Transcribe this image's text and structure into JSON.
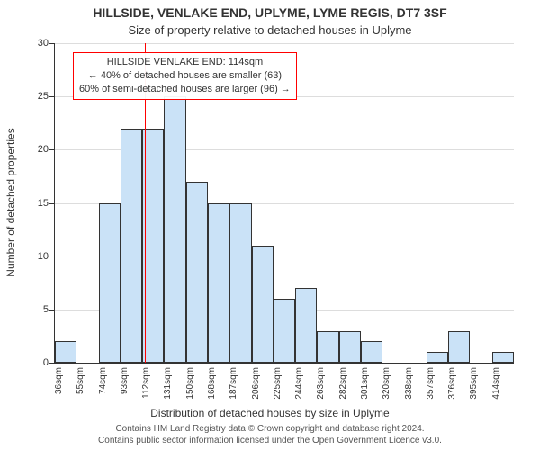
{
  "title_main": "HILLSIDE, VENLAKE END, UPLYME, LYME REGIS, DT7 3SF",
  "title_sub": "Size of property relative to detached houses in Uplyme",
  "y_axis_title": "Number of detached properties",
  "x_axis_title": "Distribution of detached houses by size in Uplyme",
  "footer_line1": "Contains HM Land Registry data © Crown copyright and database right 2024.",
  "footer_line2": "Contains public sector information licensed under the Open Government Licence v3.0.",
  "annotation": {
    "line1": "HILLSIDE VENLAKE END: 114sqm",
    "line2": "← 40% of detached houses are smaller (63)",
    "line3": "60% of semi-detached houses are larger (96) →",
    "x_value": 114,
    "line_color": "#ff0000",
    "box_border": "#ff0000",
    "box_bg": "rgba(255,255,255,0.95)"
  },
  "chart": {
    "type": "histogram",
    "background_color": "#ffffff",
    "grid_color": "#dddddd",
    "axis_color": "#333333",
    "bar_fill": "#cae2f7",
    "bar_border": "#333333",
    "ylim": [
      0,
      30
    ],
    "ytick_step": 5,
    "x_start": 36,
    "x_bin_width": 19,
    "bins": 21,
    "x_labels": [
      "36sqm",
      "55sqm",
      "74sqm",
      "93sqm",
      "112sqm",
      "131sqm",
      "150sqm",
      "168sqm",
      "187sqm",
      "206sqm",
      "225sqm",
      "244sqm",
      "263sqm",
      "282sqm",
      "301sqm",
      "320sqm",
      "338sqm",
      "357sqm",
      "376sqm",
      "395sqm",
      "414sqm"
    ],
    "values": [
      2,
      0,
      15,
      22,
      22,
      25,
      17,
      15,
      15,
      11,
      6,
      7,
      3,
      3,
      2,
      0,
      0,
      1,
      3,
      0,
      1
    ],
    "title_fontsize": 14,
    "subtitle_fontsize": 13,
    "axis_title_fontsize": 12,
    "tick_fontsize": 11,
    "xlabel_fontsize": 10
  }
}
